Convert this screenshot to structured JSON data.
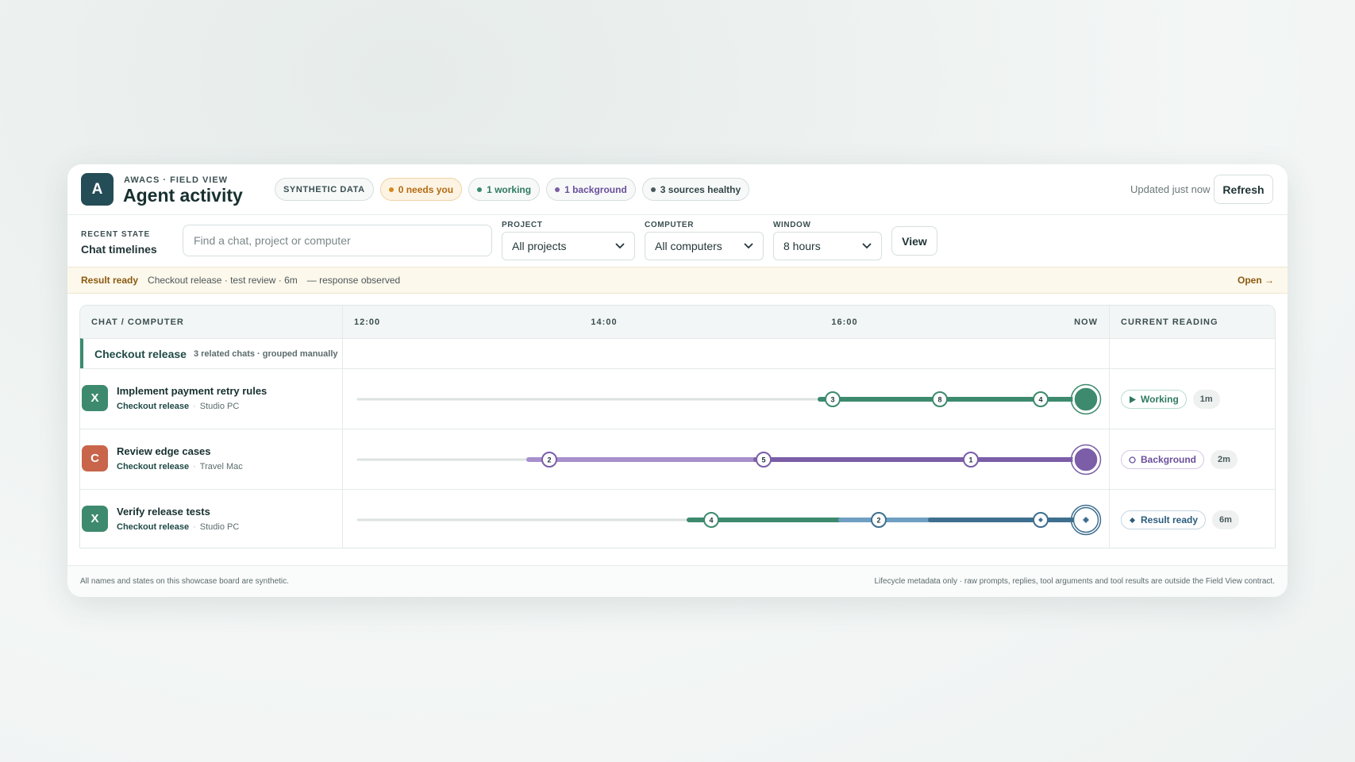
{
  "header": {
    "logo": "A",
    "eyebrow": "AWACS · FIELD VIEW",
    "title": "Agent activity",
    "chips": [
      "SYNTHETIC DATA",
      "0 needs you",
      "1 working",
      "1 background",
      "3 sources healthy"
    ],
    "updated": "Updated just now",
    "refresh": "Refresh"
  },
  "filters": {
    "eyebrow": "RECENT STATE",
    "title": "Chat timelines",
    "search_placeholder": "Find a chat, project or computer",
    "project": {
      "label": "PROJECT",
      "value": "All projects"
    },
    "computer": {
      "label": "COMPUTER",
      "value": "All computers"
    },
    "window": {
      "label": "WINDOW",
      "value": "8 hours"
    },
    "view": "View"
  },
  "banner": {
    "status": "Result ready",
    "detail": "Checkout release · test review · 6m",
    "note": "— response observed",
    "action": "Open →"
  },
  "table": {
    "columns": [
      "CHAT / COMPUTER",
      "CURRENT READING"
    ],
    "axis": [
      "12:00",
      "14:00",
      "16:00",
      "NOW"
    ],
    "group": {
      "name": "Checkout release",
      "note": "3 related chats · grouped manually"
    },
    "rows": [
      {
        "icon": "X",
        "title": "Implement payment retry rules",
        "project": "Checkout release",
        "computer": "Studio PC",
        "markers": [
          "3",
          "8",
          "4"
        ],
        "status": "Working",
        "age": "1m"
      },
      {
        "icon": "C",
        "title": "Review edge cases",
        "project": "Checkout release",
        "computer": "Travel Mac",
        "markers": [
          "2",
          "5",
          "1"
        ],
        "status": "Background",
        "age": "2m"
      },
      {
        "icon": "X",
        "title": "Verify release tests",
        "project": "Checkout release",
        "computer": "Studio PC",
        "markers": [
          "4",
          "2"
        ],
        "status": "Result ready",
        "age": "6m"
      }
    ]
  },
  "footer": {
    "left": "All names and states on this showcase board are synthetic.",
    "right": "Lifecycle metadata only · raw prompts, replies, tool arguments and tool results are outside the Field View contract."
  }
}
